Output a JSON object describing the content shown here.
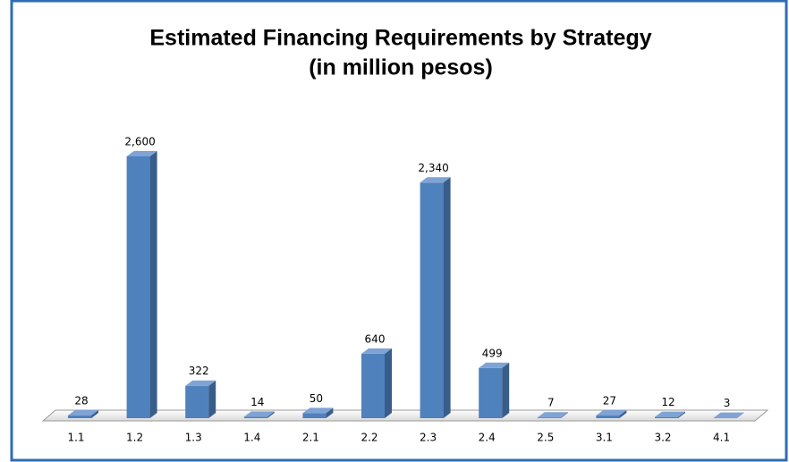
{
  "chart_data": {
    "type": "bar3d",
    "title": "Estimated Financing Requirements by Strategy",
    "subtitle": "(in million pesos)",
    "categories": [
      "1.1",
      "1.2",
      "1.3",
      "1.4",
      "2.1",
      "2.2",
      "2.3",
      "2.4",
      "2.5",
      "3.1",
      "3.2",
      "4.1"
    ],
    "values": [
      28,
      2600,
      322,
      14,
      50,
      640,
      2340,
      499,
      7,
      27,
      12,
      3
    ],
    "value_labels": [
      "28",
      "2,600",
      "322",
      "14",
      "50",
      "640",
      "2,340",
      "499",
      "7",
      "27",
      "12",
      "3"
    ],
    "color": "#4f81bd"
  }
}
